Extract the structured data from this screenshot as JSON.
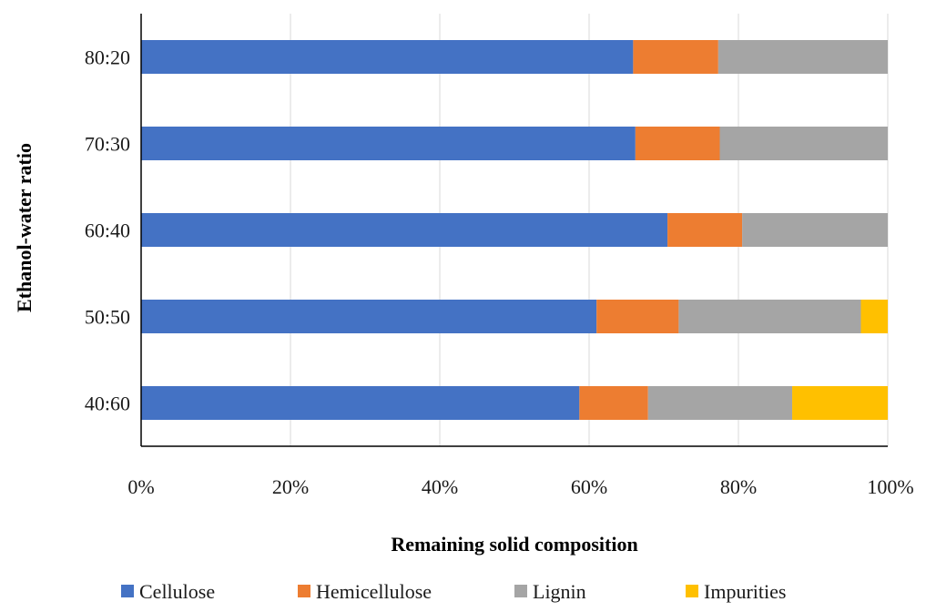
{
  "chart_data": {
    "type": "bar",
    "orientation": "horizontal",
    "stacked": true,
    "percent_stacked": true,
    "categories": [
      "40:60",
      "50:50",
      "60:40",
      "70:30",
      "80:20"
    ],
    "series": [
      {
        "name": "Cellulose",
        "color": "#4472C4",
        "values": [
          58.7,
          61.0,
          70.5,
          66.2,
          65.9
        ]
      },
      {
        "name": "Hemicellulose",
        "color": "#ED7D31",
        "values": [
          9.2,
          11.0,
          10.0,
          11.3,
          11.4
        ]
      },
      {
        "name": "Lignin",
        "color": "#A5A5A5",
        "values": [
          19.3,
          24.4,
          19.5,
          22.5,
          22.7
        ]
      },
      {
        "name": "Impurities",
        "color": "#FFC000",
        "values": [
          12.8,
          3.6,
          0,
          0,
          0
        ]
      }
    ],
    "x_ticks": [
      "0%",
      "20%",
      "40%",
      "60%",
      "80%",
      "100%"
    ],
    "xlim": [
      0,
      100
    ],
    "xlabel": "Remaining solid composition",
    "ylabel": "Ethanol-water ratio",
    "grid": "vertical",
    "legend_position": "bottom"
  }
}
